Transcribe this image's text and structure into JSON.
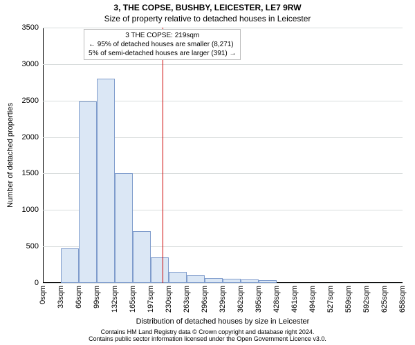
{
  "title": "3, THE COPSE, BUSHBY, LEICESTER, LE7 9RW",
  "subtitle": "Size of property relative to detached houses in Leicester",
  "ylabel": "Number of detached properties",
  "xlabel": "Distribution of detached houses by size in Leicester",
  "chart": {
    "type": "histogram",
    "background_color": "#ffffff",
    "grid_color": "#d8dcdc",
    "bar_fill": "#dbe7f5",
    "bar_border": "#7f9ccc",
    "marker_color": "#cc0000",
    "axis_color": "#000000",
    "text_color": "#000000",
    "ylim": [
      0,
      3500
    ],
    "ytick_step": 500,
    "title_fontsize": 12,
    "label_fontsize": 11,
    "tick_fontsize": 11,
    "annotation_fontsize": 10,
    "bin_width_sqm": 33,
    "categories": [
      "0sqm",
      "33sqm",
      "66sqm",
      "99sqm",
      "132sqm",
      "165sqm",
      "197sqm",
      "230sqm",
      "263sqm",
      "296sqm",
      "329sqm",
      "362sqm",
      "395sqm",
      "428sqm",
      "461sqm",
      "494sqm",
      "527sqm",
      "559sqm",
      "592sqm",
      "625sqm",
      "658sqm"
    ],
    "values": [
      0,
      470,
      2490,
      2800,
      1500,
      710,
      350,
      150,
      100,
      70,
      60,
      50,
      40,
      0,
      0,
      0,
      0,
      0,
      0,
      0
    ],
    "marker_value_sqm": 219,
    "annotation": {
      "line1": "3 THE COPSE: 219sqm",
      "line2": "← 95% of detached houses are smaller (8,271)",
      "line3": "5% of semi-detached houses are larger (391) →"
    }
  },
  "footer": {
    "line1": "Contains HM Land Registry data © Crown copyright and database right 2024.",
    "line2": "Contains public sector information licensed under the Open Government Licence v3.0."
  }
}
